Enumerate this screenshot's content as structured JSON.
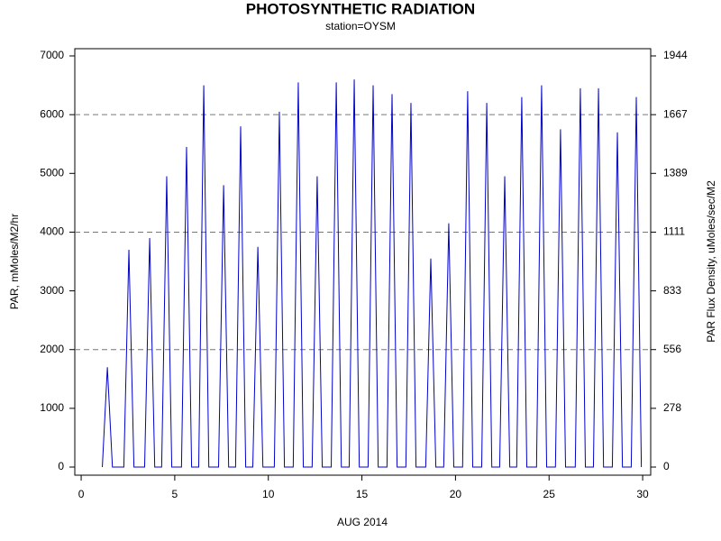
{
  "chart_data": {
    "type": "line",
    "title": "PHOTOSYNTHETIC RADIATION",
    "subtitle": "station=OYSM",
    "x_label": "AUG 2014",
    "y_label": "PAR, mMoles/M2/hr",
    "y2_label": "PAR Flux Density, uMoles/sec/M2",
    "xlim": [
      -0.34,
      30.43
    ],
    "xticks": [
      0,
      5,
      10,
      15,
      20,
      25,
      30
    ],
    "ylim": [
      -138,
      7123
    ],
    "yticks": [
      0,
      1000,
      2000,
      3000,
      4000,
      5000,
      6000,
      7000
    ],
    "y2lim": [
      -38.33,
      1978.61
    ],
    "y2ticks": [
      {
        "value": 0,
        "label": "0"
      },
      {
        "value": 277.78,
        "label": "278"
      },
      {
        "value": 555.56,
        "label": "556"
      },
      {
        "value": 833.33,
        "label": "833"
      },
      {
        "value": 1111.11,
        "label": "1111"
      },
      {
        "value": 1388.89,
        "label": "1389"
      },
      {
        "value": 1666.67,
        "label": "1667"
      },
      {
        "value": 1944.44,
        "label": "1944"
      }
    ],
    "ygrid": [
      2000,
      4000,
      6000
    ],
    "series": [
      {
        "color": "#0000cc",
        "x": [
          1.13,
          1.4,
          1.67,
          2.28,
          2.55,
          2.82,
          3.39,
          3.66,
          3.93,
          4.3,
          4.57,
          4.84,
          5.36,
          5.63,
          5.9,
          6.28,
          6.55,
          6.82,
          7.34,
          7.61,
          7.88,
          8.25,
          8.52,
          8.79,
          9.17,
          9.44,
          9.71,
          10.32,
          10.59,
          10.86,
          11.33,
          11.6,
          11.87,
          12.34,
          12.61,
          12.88,
          13.36,
          13.63,
          13.9,
          14.32,
          14.59,
          14.86,
          15.33,
          15.6,
          15.87,
          16.34,
          16.61,
          16.88,
          17.35,
          17.62,
          17.89,
          18.41,
          18.68,
          18.95,
          19.37,
          19.64,
          19.91,
          20.38,
          20.65,
          20.92,
          21.4,
          21.67,
          21.94,
          22.36,
          22.63,
          22.9,
          23.27,
          23.54,
          23.81,
          24.33,
          24.6,
          24.87,
          25.34,
          25.61,
          25.88,
          26.4,
          26.67,
          26.94,
          27.37,
          27.64,
          27.91,
          28.38,
          28.65,
          28.92,
          29.39,
          29.66,
          29.93
        ],
        "values": [
          0,
          1700,
          0,
          0,
          3700,
          0,
          0,
          3900,
          0,
          0,
          4950,
          0,
          0,
          5450,
          0,
          0,
          6500,
          0,
          0,
          4800,
          0,
          0,
          5800,
          0,
          0,
          3750,
          0,
          0,
          6050,
          0,
          0,
          6550,
          0,
          0,
          4950,
          0,
          0,
          6550,
          0,
          0,
          6600,
          0,
          0,
          6500,
          0,
          0,
          6350,
          0,
          0,
          6200,
          0,
          0,
          3550,
          0,
          0,
          4150,
          0,
          0,
          6400,
          0,
          0,
          6200,
          0,
          0,
          4950,
          0,
          0,
          6300,
          0,
          0,
          6500,
          0,
          0,
          5750,
          0,
          0,
          6450,
          0,
          0,
          6450,
          0,
          0,
          5700,
          0,
          0,
          6300,
          0
        ]
      }
    ]
  }
}
